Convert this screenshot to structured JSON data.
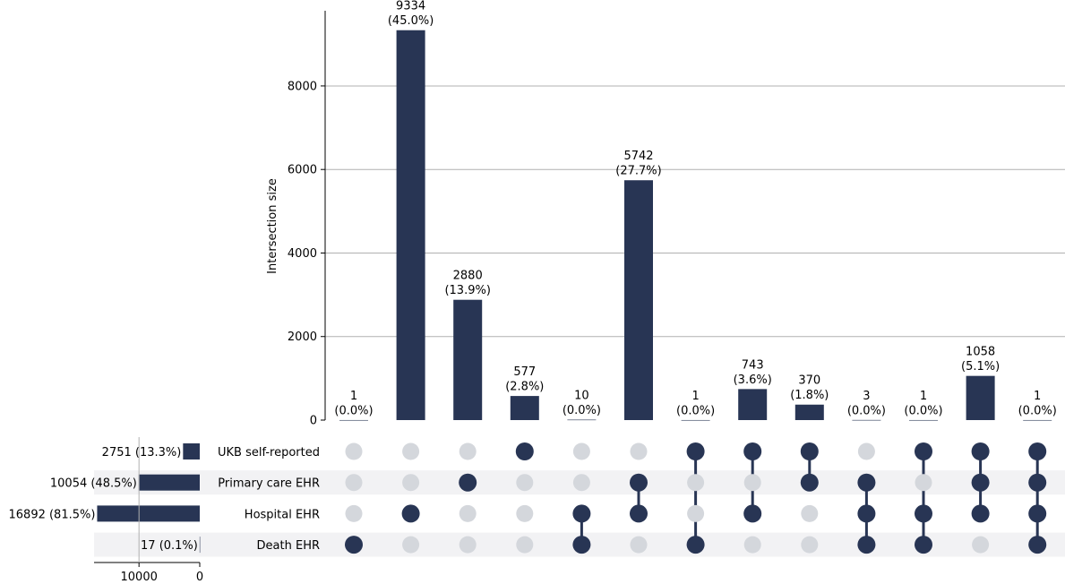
{
  "chart_data": {
    "type": "upset",
    "ylabel": "Intersection size",
    "ylim": [
      0,
      9800
    ],
    "yticks": [
      "0",
      "2000",
      "4000",
      "6000",
      "8000"
    ],
    "ytick_values": [
      0,
      2000,
      4000,
      6000,
      8000
    ],
    "grid": true,
    "sets": [
      {
        "name": "UKB self-reported",
        "size": 2751,
        "size_label": "2751 (13.3%)"
      },
      {
        "name": "Primary care EHR",
        "size": 10054,
        "size_label": "10054 (48.5%)"
      },
      {
        "name": "Hospital EHR",
        "size": 16892,
        "size_label": "16892 (81.5%)"
      },
      {
        "name": "Death EHR",
        "size": 17,
        "size_label": "17 (0.1%)"
      }
    ],
    "set_size_axis": {
      "ticks": [
        "10000",
        "0"
      ],
      "tick_values": [
        10000,
        0
      ],
      "max": 17400
    },
    "intersections": [
      {
        "count": 1,
        "count_label": "1",
        "pct_label": "(0.0%)",
        "members": [
          false,
          false,
          false,
          true
        ]
      },
      {
        "count": 9334,
        "count_label": "9334",
        "pct_label": "(45.0%)",
        "members": [
          false,
          false,
          true,
          false
        ]
      },
      {
        "count": 2880,
        "count_label": "2880",
        "pct_label": "(13.9%)",
        "members": [
          false,
          true,
          false,
          false
        ]
      },
      {
        "count": 577,
        "count_label": "577",
        "pct_label": "(2.8%)",
        "members": [
          true,
          false,
          false,
          false
        ]
      },
      {
        "count": 10,
        "count_label": "10",
        "pct_label": "(0.0%)",
        "members": [
          false,
          false,
          true,
          true
        ]
      },
      {
        "count": 5742,
        "count_label": "5742",
        "pct_label": "(27.7%)",
        "members": [
          false,
          true,
          true,
          false
        ]
      },
      {
        "count": 1,
        "count_label": "1",
        "pct_label": "(0.0%)",
        "members": [
          true,
          false,
          false,
          true
        ]
      },
      {
        "count": 743,
        "count_label": "743",
        "pct_label": "(3.6%)",
        "members": [
          true,
          false,
          true,
          false
        ]
      },
      {
        "count": 370,
        "count_label": "370",
        "pct_label": "(1.8%)",
        "members": [
          true,
          true,
          false,
          false
        ]
      },
      {
        "count": 3,
        "count_label": "3",
        "pct_label": "(0.0%)",
        "members": [
          false,
          true,
          true,
          true
        ]
      },
      {
        "count": 1,
        "count_label": "1",
        "pct_label": "(0.0%)",
        "members": [
          true,
          false,
          true,
          true
        ]
      },
      {
        "count": 1058,
        "count_label": "1058",
        "pct_label": "(5.1%)",
        "members": [
          true,
          true,
          true,
          false
        ]
      },
      {
        "count": 1,
        "count_label": "1",
        "pct_label": "(0.0%)",
        "members": [
          true,
          true,
          true,
          true
        ]
      }
    ],
    "colors": {
      "bar": "#283554",
      "dot_active": "#283554",
      "dot_inactive": "#d4d7dc",
      "stripe": "#f2f2f4",
      "grid": "#b0b0b0"
    }
  }
}
